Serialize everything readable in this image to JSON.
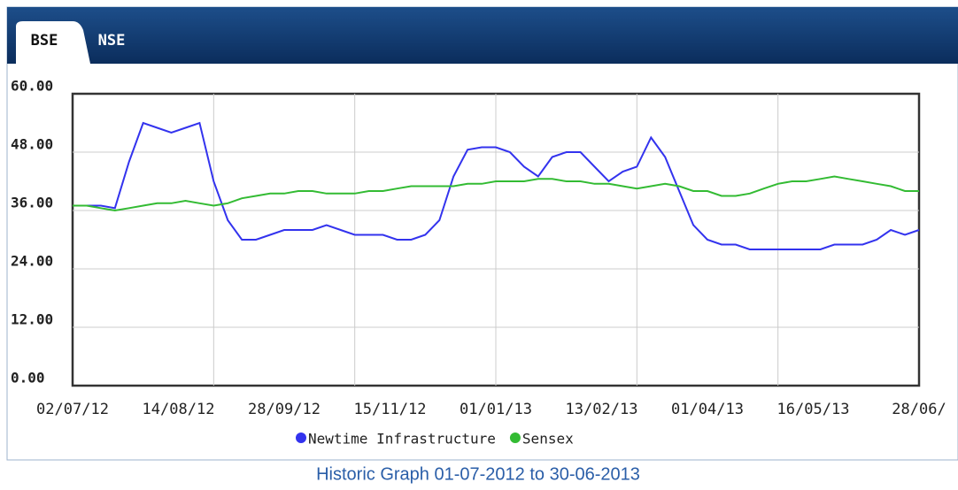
{
  "tabs": [
    "BSE",
    "NSE"
  ],
  "caption": "Historic Graph 01-07-2012 to 30-06-2013",
  "chart_data": {
    "type": "line",
    "xticks": [
      "02/07/12",
      "14/08/12",
      "28/09/12",
      "15/11/12",
      "01/01/13",
      "13/02/13",
      "01/04/13",
      "16/05/13",
      "28/06/"
    ],
    "ylim": [
      0,
      60
    ],
    "yticks": [
      {
        "value": 0,
        "label": "0.00"
      },
      {
        "value": 12,
        "label": "12.00"
      },
      {
        "value": 24,
        "label": "24.00"
      },
      {
        "value": 36,
        "label": "36.00"
      },
      {
        "value": 48,
        "label": "48.00"
      },
      {
        "value": 60,
        "label": "60.00"
      }
    ],
    "grid": true,
    "series": [
      {
        "name": "Newtime Infrastructure",
        "color": "#3333ee",
        "values": [
          37,
          37,
          37,
          36.5,
          46,
          54,
          53,
          52,
          53,
          54,
          42,
          34,
          30,
          30,
          31,
          32,
          32,
          32,
          33,
          32,
          31,
          31,
          31,
          30,
          30,
          31,
          34,
          43,
          48.5,
          49,
          49,
          48,
          45,
          43,
          47,
          48,
          48,
          45,
          42,
          44,
          45,
          51,
          47,
          40,
          33,
          30,
          29,
          29,
          28,
          28,
          28,
          28,
          28,
          28,
          29,
          29,
          29,
          30,
          32,
          31,
          32
        ]
      },
      {
        "name": "Sensex",
        "color": "#33bb33",
        "values": [
          37,
          37,
          36.5,
          36,
          36.5,
          37,
          37.5,
          37.5,
          38,
          37.5,
          37,
          37.5,
          38.5,
          39,
          39.5,
          39.5,
          40,
          40,
          39.5,
          39.5,
          39.5,
          40,
          40,
          40.5,
          41,
          41,
          41,
          41,
          41.5,
          41.5,
          42,
          42,
          42,
          42.5,
          42.5,
          42,
          42,
          41.5,
          41.5,
          41,
          40.5,
          41,
          41.5,
          41,
          40,
          40,
          39,
          39,
          39.5,
          40.5,
          41.5,
          42,
          42,
          42.5,
          43,
          42.5,
          42,
          41.5,
          41,
          40,
          40
        ]
      }
    ]
  }
}
